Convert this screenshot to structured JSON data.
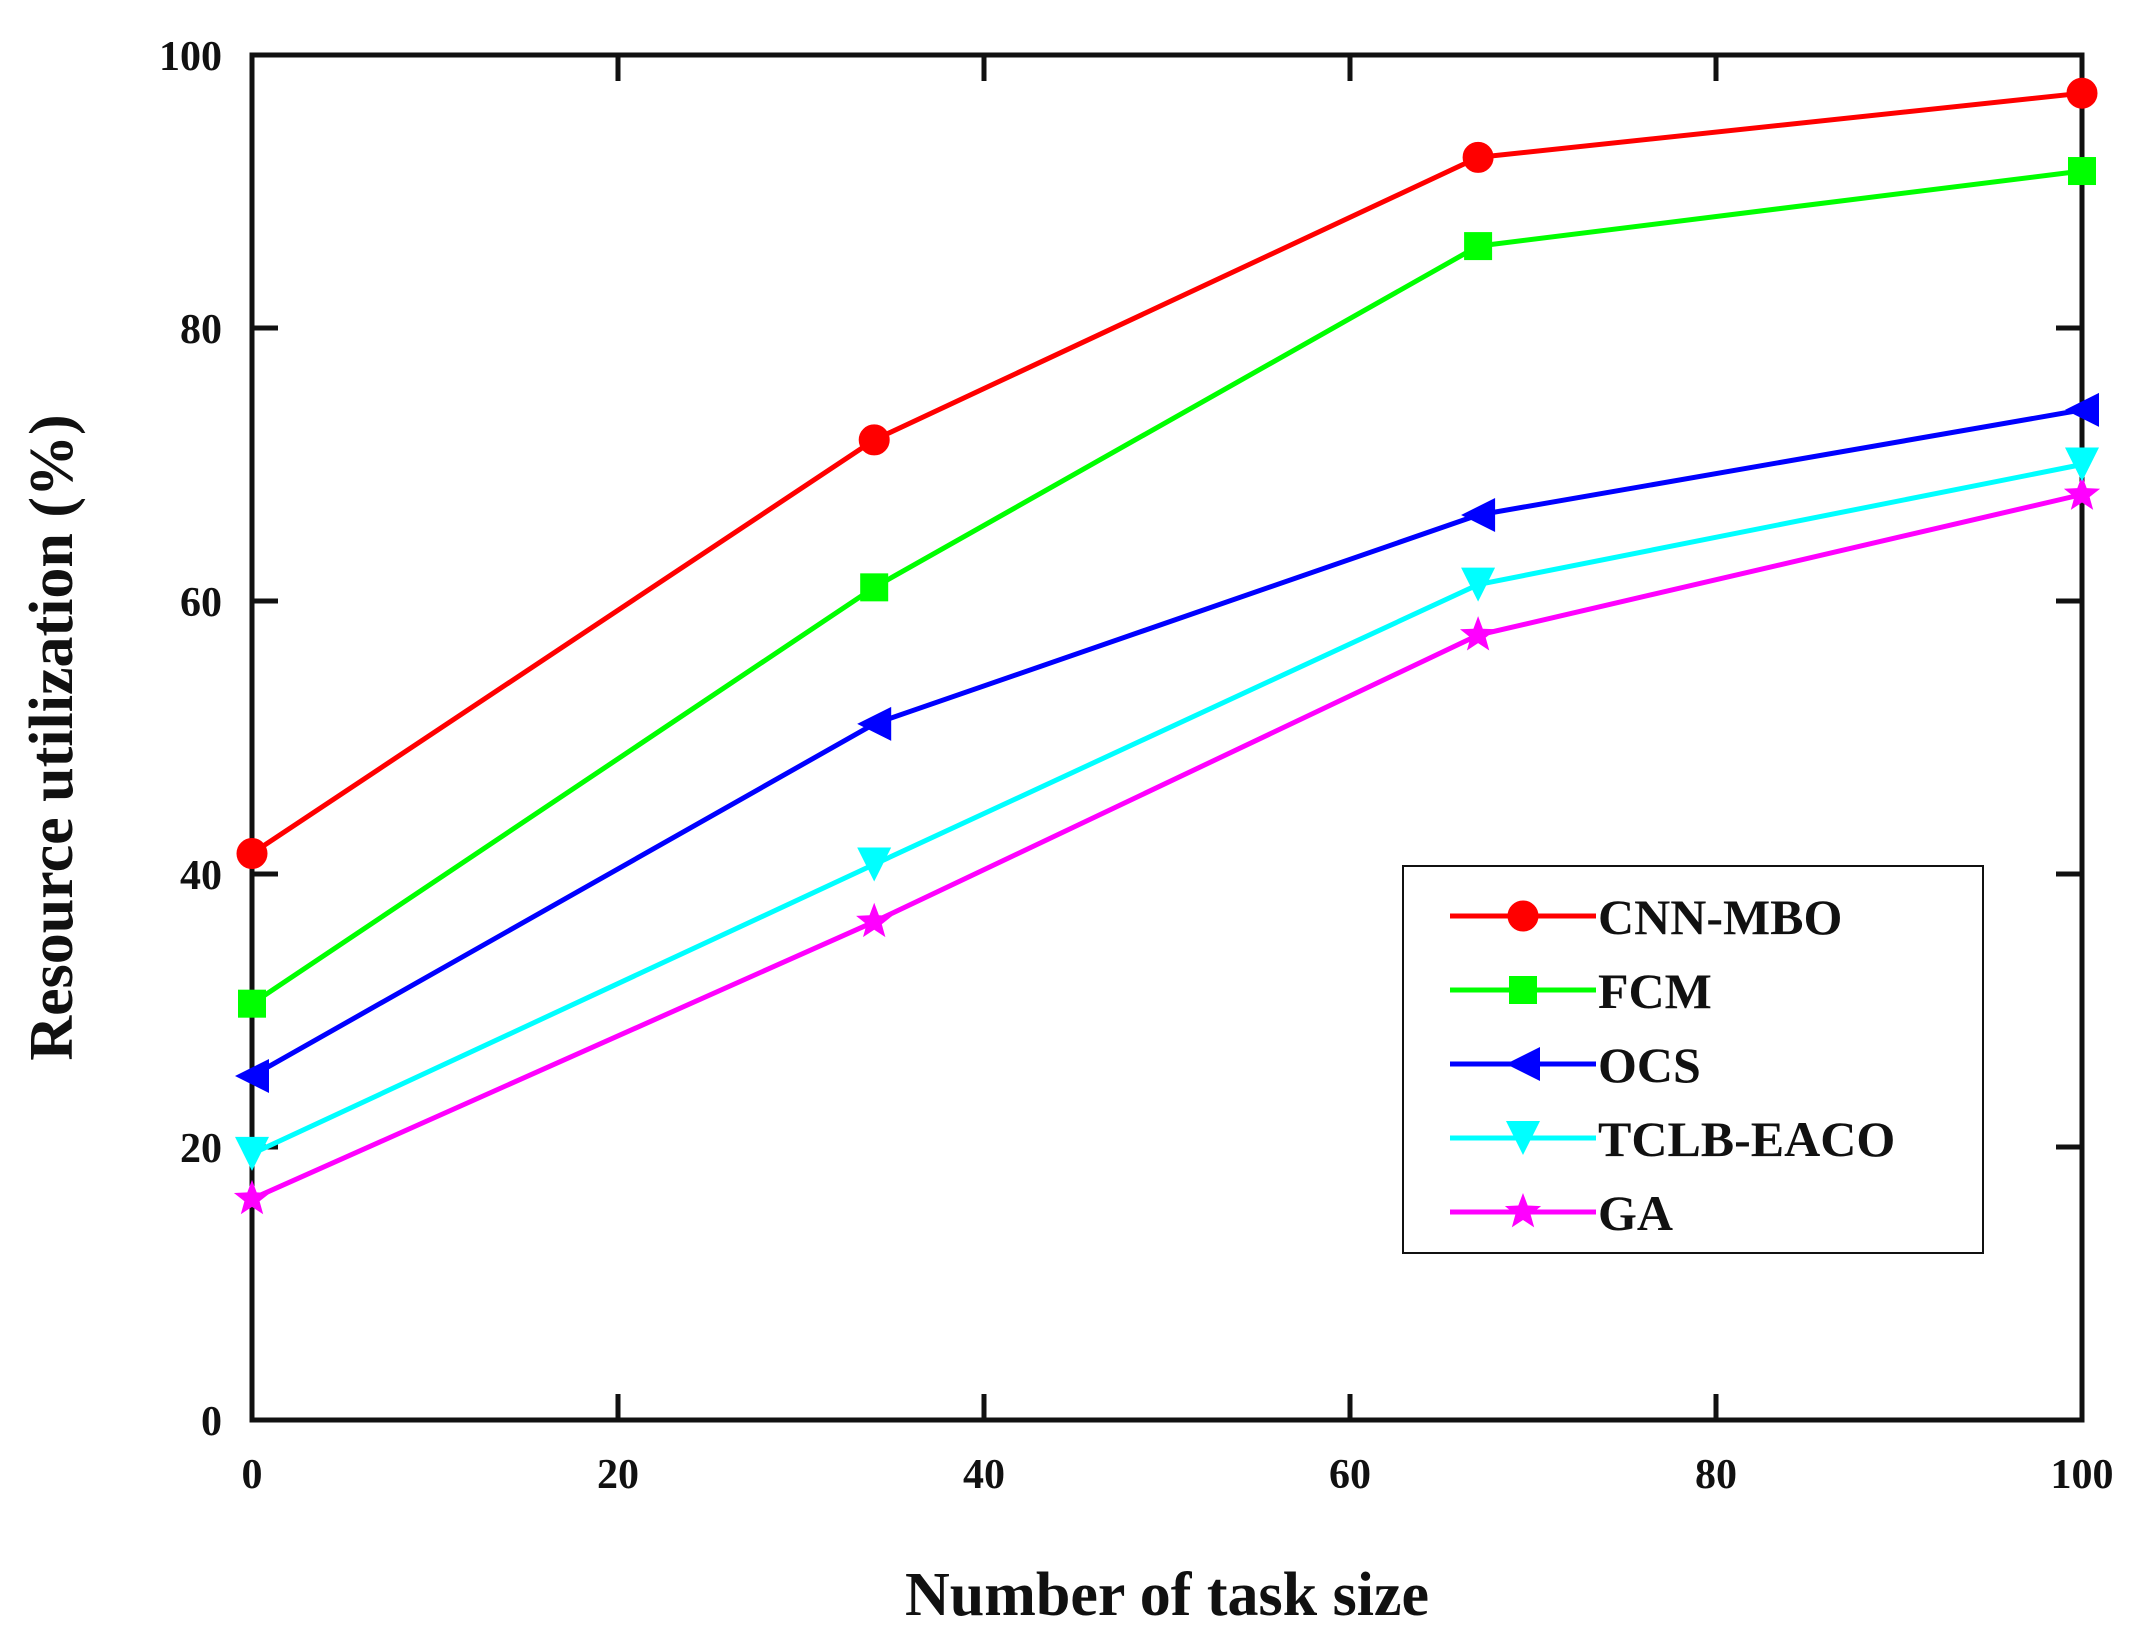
{
  "chart_data": {
    "type": "line",
    "title": "",
    "xlabel": "Number of task size",
    "ylabel": "Resource utilization (%)",
    "xlim": [
      0,
      100
    ],
    "ylim": [
      0,
      100
    ],
    "x_ticks": [
      0,
      20,
      40,
      60,
      80,
      100
    ],
    "y_ticks": [
      0,
      20,
      40,
      60,
      80,
      100
    ],
    "x_tick_labels": [
      "0",
      "20",
      "40",
      "60",
      "80",
      "100"
    ],
    "y_tick_labels": [
      "0",
      "20",
      "40",
      "60",
      "80",
      "100"
    ],
    "grid": false,
    "legend_position": "center-right",
    "x": [
      0,
      34,
      67,
      100
    ],
    "series": [
      {
        "name": "CNN-MBO",
        "color": "#ff0000",
        "marker": "circle",
        "values": [
          41.5,
          71.8,
          92.5,
          97.2
        ]
      },
      {
        "name": "FCM",
        "color": "#00ff00",
        "marker": "square",
        "values": [
          30.5,
          61.0,
          86.0,
          91.5
        ]
      },
      {
        "name": "OCS",
        "color": "#0000ff",
        "marker": "triangle-left",
        "values": [
          25.2,
          51.0,
          66.3,
          74.0
        ]
      },
      {
        "name": "TCLB-EACO",
        "color": "#00ffff",
        "marker": "triangle-down",
        "values": [
          19.5,
          40.7,
          61.2,
          70.0
        ]
      },
      {
        "name": "GA",
        "color": "#ff00ff",
        "marker": "star",
        "values": [
          16.2,
          36.5,
          57.5,
          67.8
        ]
      }
    ]
  }
}
